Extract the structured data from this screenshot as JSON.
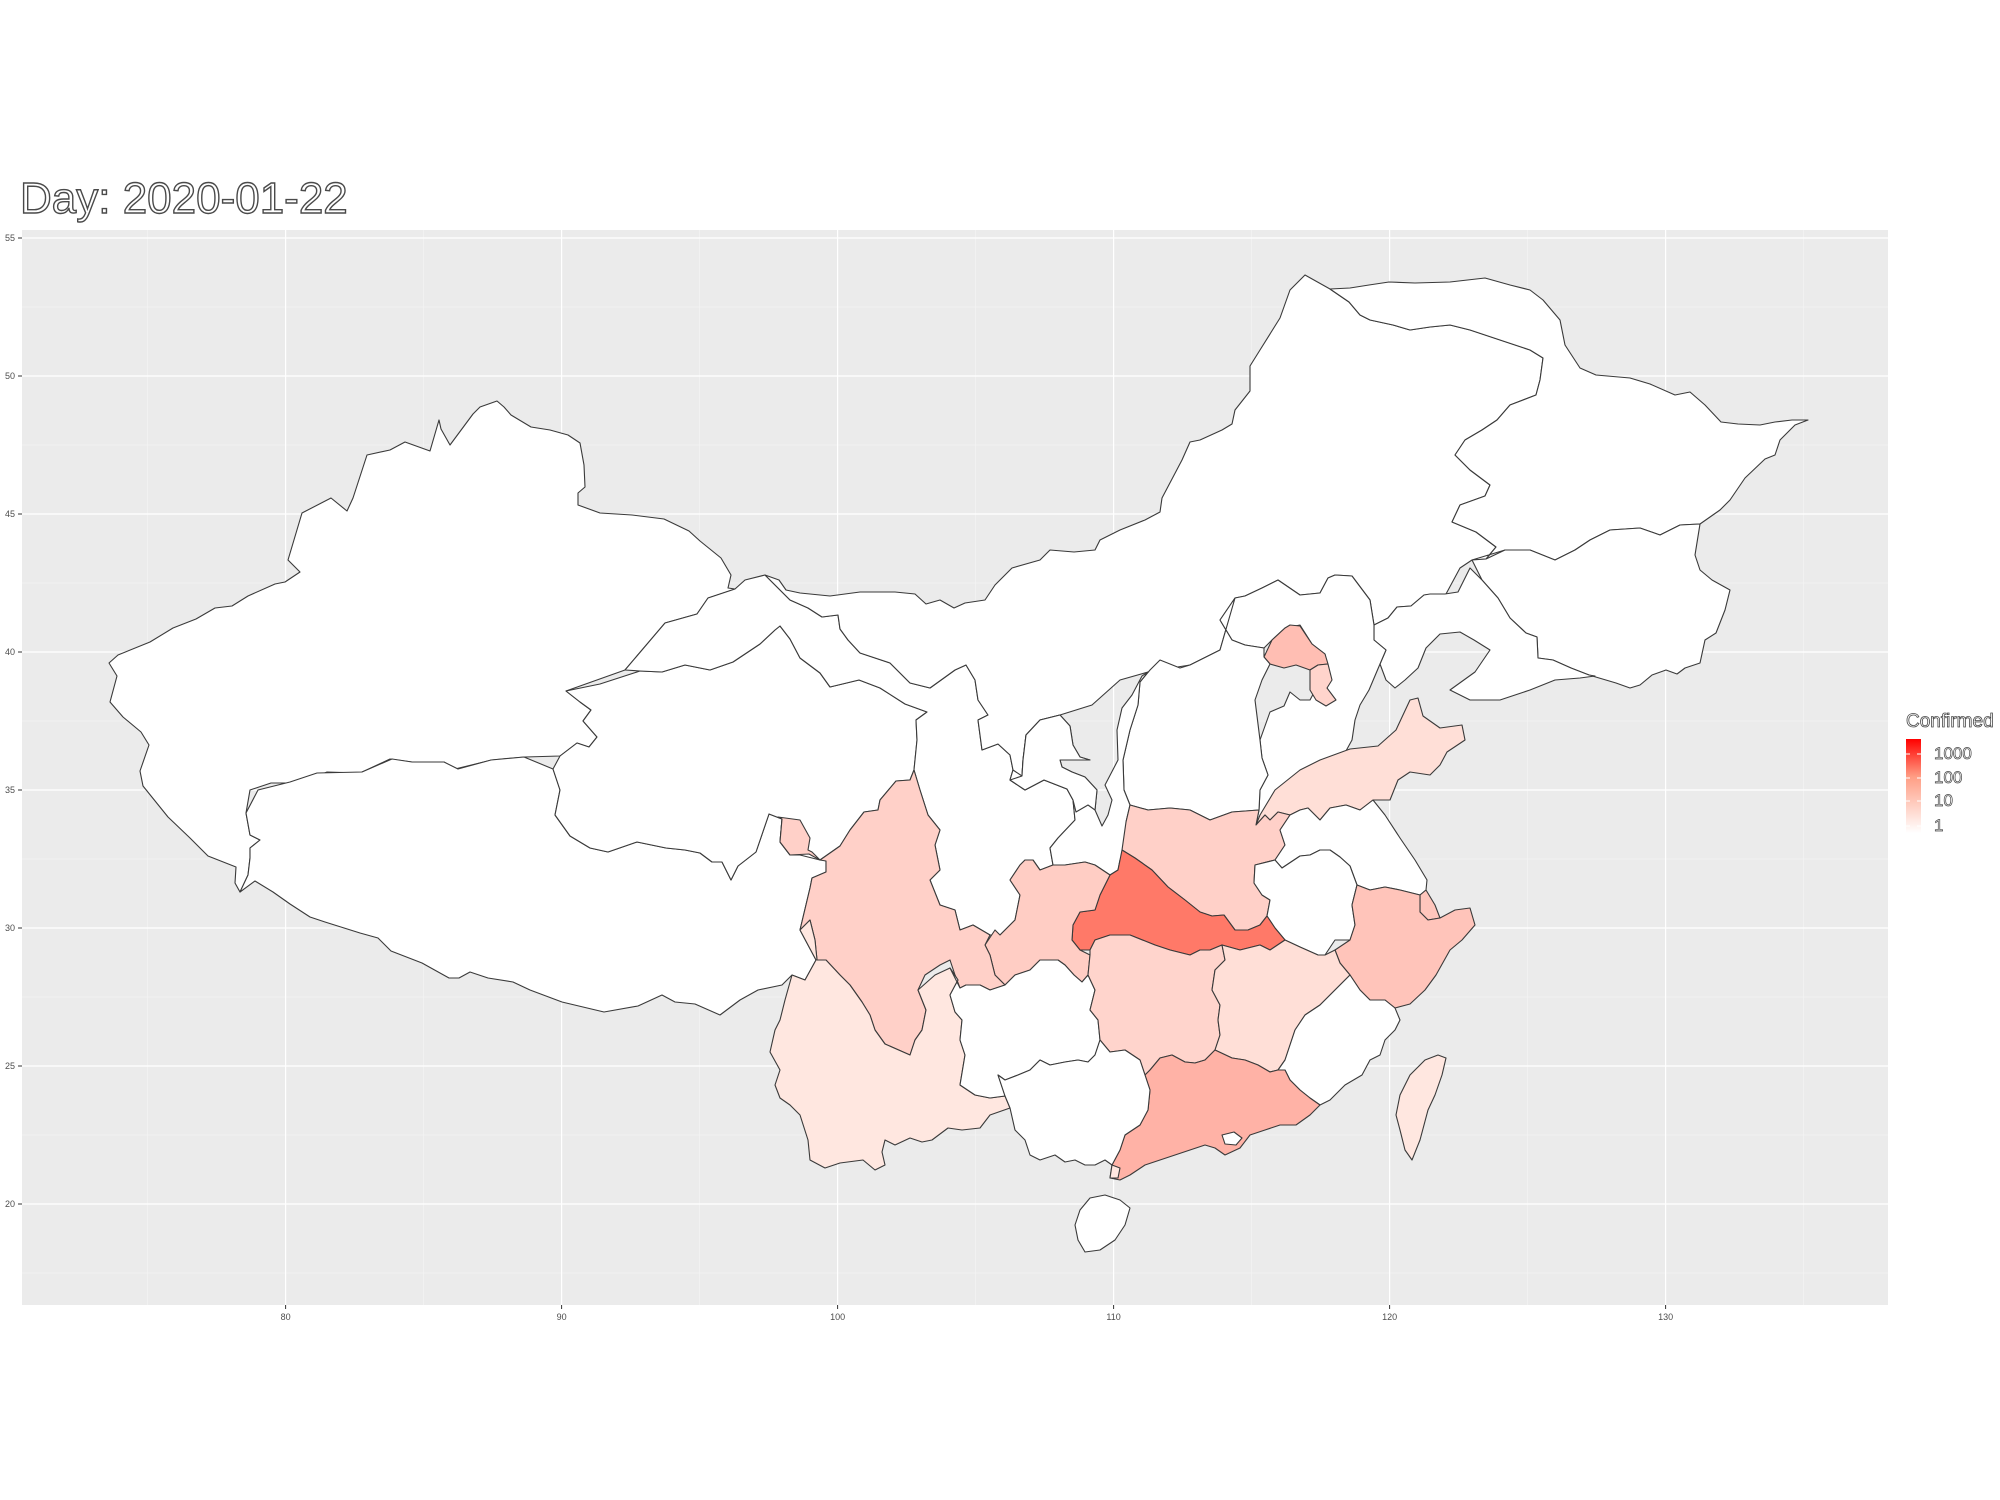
{
  "title": "Day: 2020-01-22",
  "chart_data": {
    "type": "choropleth",
    "region": "China provinces",
    "date": "2020-01-22",
    "x_ticks": [
      "80",
      "90",
      "100",
      "110",
      "120",
      "130"
    ],
    "y_ticks": [
      "20",
      "25",
      "30",
      "35",
      "40",
      "45",
      "50",
      "55"
    ],
    "xlim": [
      70.5,
      138
    ],
    "ylim": [
      16.5,
      55.5
    ],
    "legend": {
      "title": "Confirmed",
      "scale": "log10",
      "labels": [
        "1000",
        "100",
        "10",
        "1"
      ],
      "color_low": "#ffffff",
      "color_high": "#ff0000",
      "placement": "right"
    },
    "provinces": [
      {
        "name": "Xinjiang",
        "confirmed": 0
      },
      {
        "name": "Tibet",
        "confirmed": 0
      },
      {
        "name": "Qinghai",
        "confirmed": 0
      },
      {
        "name": "Gansu",
        "confirmed": 0
      },
      {
        "name": "Inner Mongolia",
        "confirmed": 0
      },
      {
        "name": "Heilongjiang",
        "confirmed": 0
      },
      {
        "name": "Jilin",
        "confirmed": 0
      },
      {
        "name": "Liaoning",
        "confirmed": 0
      },
      {
        "name": "Hebei",
        "confirmed": 0
      },
      {
        "name": "Beijing",
        "confirmed": 14
      },
      {
        "name": "Tianjin",
        "confirmed": 4
      },
      {
        "name": "Shanxi",
        "confirmed": 0
      },
      {
        "name": "Shaanxi",
        "confirmed": 0
      },
      {
        "name": "Ningxia",
        "confirmed": 0
      },
      {
        "name": "Shandong",
        "confirmed": 2
      },
      {
        "name": "Henan",
        "confirmed": 5
      },
      {
        "name": "Jiangsu",
        "confirmed": 0
      },
      {
        "name": "Anhui",
        "confirmed": 0
      },
      {
        "name": "Shanghai",
        "confirmed": 9
      },
      {
        "name": "Zhejiang",
        "confirmed": 10
      },
      {
        "name": "Hubei",
        "confirmed": 444
      },
      {
        "name": "Chongqing",
        "confirmed": 6
      },
      {
        "name": "Sichuan",
        "confirmed": 5
      },
      {
        "name": "Yunnan",
        "confirmed": 1
      },
      {
        "name": "Guizhou",
        "confirmed": 0
      },
      {
        "name": "Hunan",
        "confirmed": 4
      },
      {
        "name": "Jiangxi",
        "confirmed": 2
      },
      {
        "name": "Fujian",
        "confirmed": 0
      },
      {
        "name": "Guangdong",
        "confirmed": 26
      },
      {
        "name": "Guangxi",
        "confirmed": 0
      },
      {
        "name": "Hainan",
        "confirmed": 0
      },
      {
        "name": "Taiwan",
        "confirmed": 1
      },
      {
        "name": "Hong Kong",
        "confirmed": 0
      },
      {
        "name": "Macau",
        "confirmed": 1
      }
    ]
  }
}
